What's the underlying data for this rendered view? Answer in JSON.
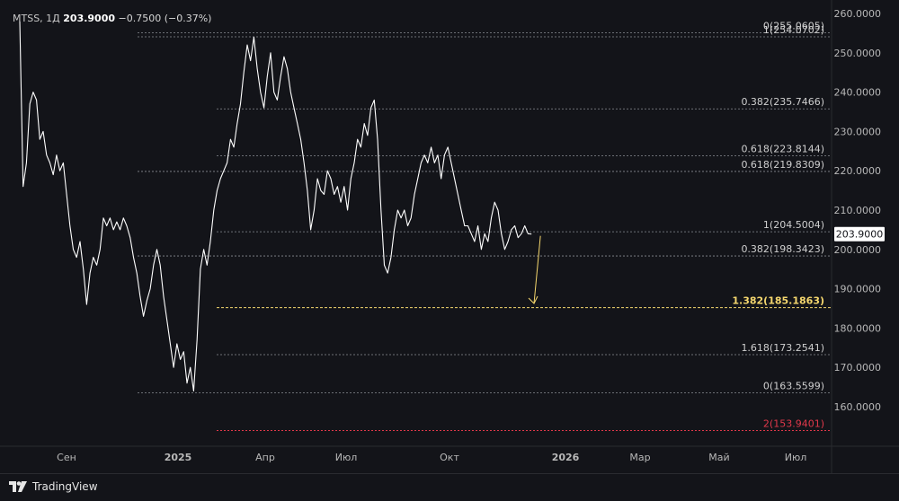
{
  "header": {
    "symbol": "MTSS, 1Д",
    "price": "203.9000",
    "change": "−0.7500 (−0.37%)"
  },
  "footer": {
    "brand": "TradingView"
  },
  "colors": {
    "background": "#131419",
    "price_line": "#ffffff",
    "level_line": "#8a8d94",
    "highlight_level": "#f5d76e",
    "negative_level": "#e0384a",
    "arrow": "#f5d76e",
    "axis_text": "#b8b8b8"
  },
  "chart_data": {
    "type": "line",
    "ylim": [
      150,
      260
    ],
    "y_ticks": [
      "160.0000",
      "170.0000",
      "180.0000",
      "190.0000",
      "200.0000",
      "210.0000",
      "220.0000",
      "230.0000",
      "240.0000",
      "250.0000",
      "260.0000"
    ],
    "x_ticks": [
      "Сен",
      "2025",
      "Апр",
      "Июл",
      "Окт",
      "2026",
      "Мар",
      "Май",
      "Июл"
    ],
    "last_price_label": "203.9000",
    "levels": [
      {
        "label": "0(255.0605)",
        "value": 255.06,
        "style": "normal"
      },
      {
        "label": "1(254.0702)",
        "value": 254.07,
        "style": "normal"
      },
      {
        "label": "0.382(235.7466)",
        "value": 235.75,
        "style": "normal"
      },
      {
        "label": "0.618(223.8144)",
        "value": 223.81,
        "style": "normal"
      },
      {
        "label": "0.618(219.8309)",
        "value": 219.83,
        "style": "normal"
      },
      {
        "label": "1(204.5004)",
        "value": 204.5,
        "style": "normal"
      },
      {
        "label": "0.382(198.3423)",
        "value": 198.34,
        "style": "normal"
      },
      {
        "label": "1.382(185.1863)",
        "value": 185.19,
        "style": "highlight"
      },
      {
        "label": "1.618(173.2541)",
        "value": 173.25,
        "style": "normal"
      },
      {
        "label": "0(163.5599)",
        "value": 163.56,
        "style": "normal"
      },
      {
        "label": "2(153.9401)",
        "value": 153.94,
        "style": "negative"
      }
    ],
    "series": [
      {
        "values": [
          [
            0,
            258
          ],
          [
            1,
            216
          ],
          [
            2,
            222
          ],
          [
            3,
            237
          ],
          [
            4,
            240
          ],
          [
            5,
            238
          ],
          [
            6,
            228
          ],
          [
            7,
            230
          ],
          [
            8,
            224
          ],
          [
            9,
            222
          ],
          [
            10,
            219
          ],
          [
            11,
            224
          ],
          [
            12,
            220
          ],
          [
            13,
            222
          ],
          [
            14,
            214
          ],
          [
            15,
            206
          ],
          [
            16,
            200
          ],
          [
            17,
            198
          ],
          [
            18,
            202
          ],
          [
            19,
            195
          ],
          [
            20,
            186
          ],
          [
            21,
            194
          ],
          [
            22,
            198
          ],
          [
            23,
            196
          ],
          [
            24,
            200
          ],
          [
            25,
            208
          ],
          [
            26,
            206
          ],
          [
            27,
            208
          ],
          [
            28,
            205
          ],
          [
            29,
            207
          ],
          [
            30,
            205
          ],
          [
            31,
            208
          ],
          [
            32,
            206
          ],
          [
            33,
            203
          ],
          [
            34,
            198
          ],
          [
            35,
            194
          ],
          [
            36,
            188
          ],
          [
            37,
            183
          ],
          [
            38,
            187
          ],
          [
            39,
            190
          ],
          [
            40,
            196
          ],
          [
            41,
            200
          ],
          [
            42,
            196
          ],
          [
            43,
            188
          ],
          [
            44,
            182
          ],
          [
            45,
            176
          ],
          [
            46,
            170
          ],
          [
            47,
            176
          ],
          [
            48,
            172
          ],
          [
            49,
            174
          ],
          [
            50,
            166
          ],
          [
            51,
            170
          ],
          [
            52,
            164
          ],
          [
            53,
            177
          ],
          [
            54,
            195
          ],
          [
            55,
            200
          ],
          [
            56,
            196
          ],
          [
            57,
            202
          ],
          [
            58,
            210
          ],
          [
            59,
            215
          ],
          [
            60,
            218
          ],
          [
            61,
            220
          ],
          [
            62,
            222
          ],
          [
            63,
            228
          ],
          [
            64,
            226
          ],
          [
            65,
            232
          ],
          [
            66,
            237
          ],
          [
            67,
            245
          ],
          [
            68,
            252
          ],
          [
            69,
            248
          ],
          [
            70,
            254
          ],
          [
            71,
            246
          ],
          [
            72,
            240
          ],
          [
            73,
            236
          ],
          [
            74,
            244
          ],
          [
            75,
            250
          ],
          [
            76,
            240
          ],
          [
            77,
            238
          ],
          [
            78,
            244
          ],
          [
            79,
            249
          ],
          [
            80,
            246
          ],
          [
            81,
            240
          ],
          [
            82,
            236
          ],
          [
            83,
            232
          ],
          [
            84,
            228
          ],
          [
            85,
            222
          ],
          [
            86,
            215
          ],
          [
            87,
            205
          ],
          [
            88,
            210
          ],
          [
            89,
            218
          ],
          [
            90,
            215
          ],
          [
            91,
            214
          ],
          [
            92,
            220
          ],
          [
            93,
            218
          ],
          [
            94,
            214
          ],
          [
            95,
            216
          ],
          [
            96,
            212
          ],
          [
            97,
            216
          ],
          [
            98,
            210
          ],
          [
            99,
            218
          ],
          [
            100,
            222
          ],
          [
            101,
            228
          ],
          [
            102,
            226
          ],
          [
            103,
            232
          ],
          [
            104,
            229
          ],
          [
            105,
            236
          ],
          [
            106,
            238
          ],
          [
            107,
            228
          ],
          [
            108,
            210
          ],
          [
            109,
            196
          ],
          [
            110,
            194
          ],
          [
            111,
            198
          ],
          [
            112,
            205
          ],
          [
            113,
            210
          ],
          [
            114,
            208
          ],
          [
            115,
            210
          ],
          [
            116,
            206
          ],
          [
            117,
            208
          ],
          [
            118,
            214
          ],
          [
            119,
            218
          ],
          [
            120,
            222
          ],
          [
            121,
            224
          ],
          [
            122,
            222
          ],
          [
            123,
            226
          ],
          [
            124,
            222
          ],
          [
            125,
            224
          ],
          [
            126,
            218
          ],
          [
            127,
            224
          ],
          [
            128,
            226
          ],
          [
            129,
            222
          ],
          [
            130,
            218
          ],
          [
            131,
            214
          ],
          [
            132,
            210
          ],
          [
            133,
            206
          ],
          [
            134,
            206
          ],
          [
            135,
            204
          ],
          [
            136,
            202
          ],
          [
            137,
            206
          ],
          [
            138,
            200
          ],
          [
            139,
            204
          ],
          [
            140,
            202
          ],
          [
            141,
            208
          ],
          [
            142,
            212
          ],
          [
            143,
            210
          ],
          [
            144,
            204
          ],
          [
            145,
            200
          ],
          [
            146,
            202
          ],
          [
            147,
            205
          ],
          [
            148,
            206
          ],
          [
            149,
            203
          ],
          [
            150,
            204
          ],
          [
            151,
            206
          ],
          [
            152,
            204
          ],
          [
            153,
            203.9
          ]
        ]
      }
    ]
  }
}
